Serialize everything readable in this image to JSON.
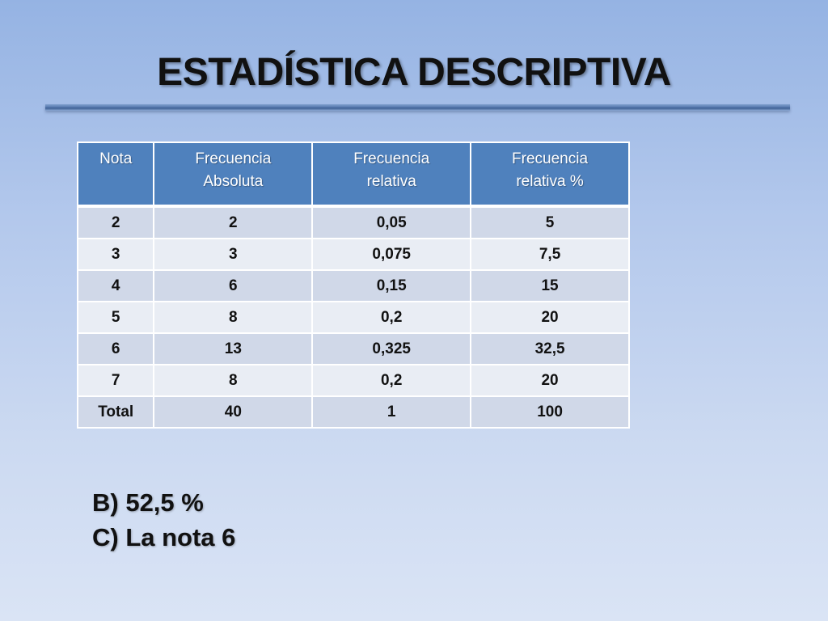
{
  "slide": {
    "title": "ESTADÍSTICA DESCRIPTIVA"
  },
  "table": {
    "headers": [
      [
        "Nota"
      ],
      [
        "Frecuencia",
        "Absoluta"
      ],
      [
        "Frecuencia",
        "relativa"
      ],
      [
        "Frecuencia",
        "relativa %"
      ]
    ],
    "rows": [
      [
        "2",
        "2",
        "0,05",
        "5"
      ],
      [
        "3",
        "3",
        "0,075",
        "7,5"
      ],
      [
        "4",
        "6",
        "0,15",
        "15"
      ],
      [
        "5",
        "8",
        "0,2",
        "20"
      ],
      [
        "6",
        "13",
        "0,325",
        "32,5"
      ],
      [
        "7",
        "8",
        "0,2",
        "20"
      ],
      [
        "Total",
        "40",
        "1",
        "100"
      ]
    ]
  },
  "answers": [
    "B) 52,5 %",
    "C) La nota 6"
  ],
  "colors": {
    "header_bg": "#4f81bd",
    "row_dark": "#d0d8e8",
    "row_light": "#e9edf4"
  }
}
